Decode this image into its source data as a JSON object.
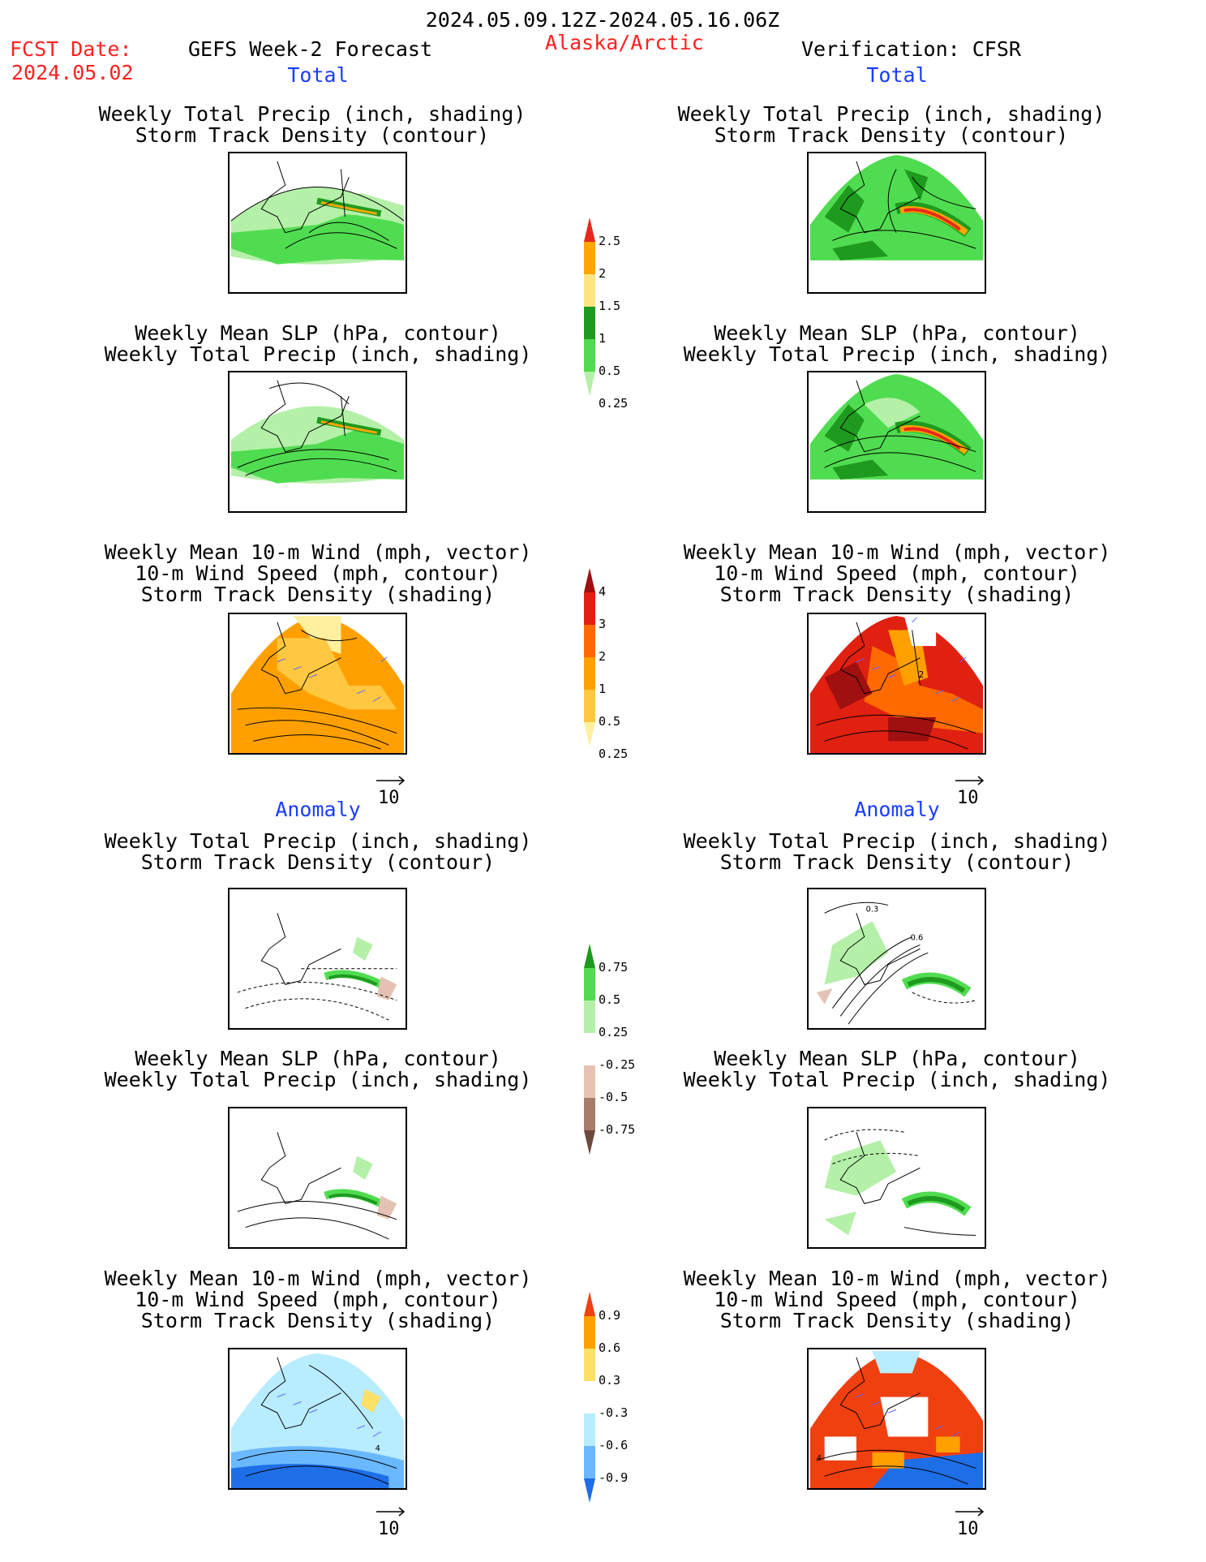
{
  "header": {
    "date_range": "2024.05.09.12Z-2024.05.16.06Z",
    "fcst_label": "FCST Date:",
    "fcst_date": "2024.05.02",
    "model": "GEFS Week-2 Forecast",
    "region": "Alaska/Arctic",
    "verification": "Verification: CFSR"
  },
  "sections": {
    "total": "Total",
    "anomaly": "Anomaly"
  },
  "titles": {
    "precip_track": [
      "Weekly Total Precip (inch, shading)",
      "Storm Track Density (contour)"
    ],
    "slp_precip": [
      "Weekly Mean SLP (hPa, contour)",
      "Weekly Total Precip (inch, shading)"
    ],
    "wind_track": [
      "Weekly Mean 10-m Wind (mph, vector)",
      "10-m Wind Speed (mph, contour)",
      "Storm Track Density (shading)"
    ]
  },
  "vector_ref": "10",
  "colorbars": {
    "precip_total": {
      "labels": [
        "2.5",
        "2",
        "1.5",
        "1",
        "0.5",
        "0.25"
      ],
      "colors": [
        "#e8281c",
        "#ffa500",
        "#ffe480",
        "#1e9a1e",
        "#50dc50",
        "#b4f0a8"
      ]
    },
    "track_total": {
      "labels": [
        "4",
        "3",
        "2",
        "1",
        "0.5",
        "0.25"
      ],
      "colors": [
        "#a01010",
        "#e02010",
        "#ff6a00",
        "#ffa000",
        "#ffc840",
        "#fff0a0"
      ]
    },
    "precip_anom": {
      "labels": [
        "0.75",
        "0.5",
        "0.25",
        "-0.25",
        "-0.5",
        "-0.75"
      ],
      "colors": [
        "#1e9a1e",
        "#50dc50",
        "#b4f0a8",
        "#ffffff",
        "#e6c2b4",
        "#a87c6c",
        "#6e4a3e"
      ]
    },
    "track_anom": {
      "labels": [
        "0.9",
        "0.6",
        "0.3",
        "-0.3",
        "-0.6",
        "-0.9"
      ],
      "colors": [
        "#f04010",
        "#ffa000",
        "#ffe066",
        "#ffffff",
        "#b8ecff",
        "#6ab8ff",
        "#1e6ee8"
      ]
    }
  },
  "panel_labels": {
    "fc_wind_anom_contour": "4",
    "an_wind_total_contour": "2",
    "an_precip_anom_contour_a": "0.3",
    "an_precip_anom_contour_b": "0.6",
    "an_wind_anom_contour": "4"
  }
}
